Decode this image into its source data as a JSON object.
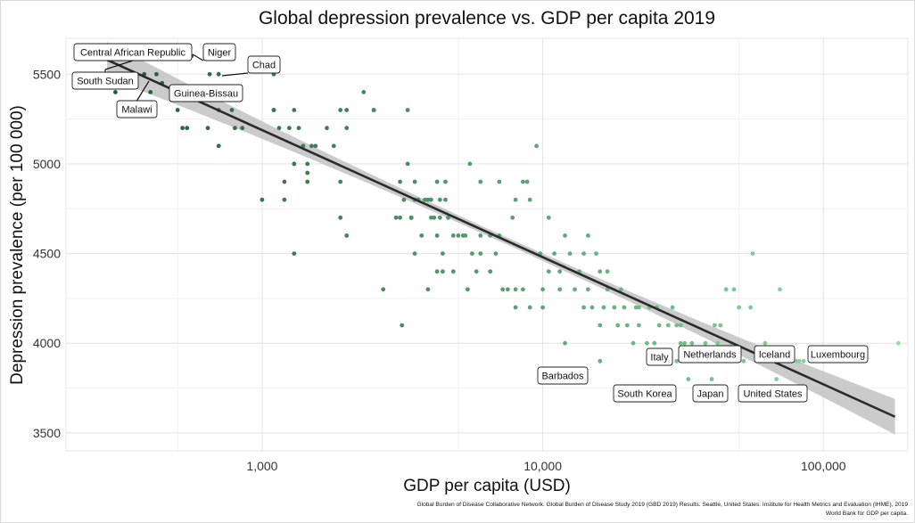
{
  "chart_data": {
    "type": "scatter",
    "title": "Global depression prevalence vs. GDP per capita 2019",
    "xlabel": "GDP per capita (USD)",
    "ylabel": "Depression prevalence (per 100 000)",
    "x_scale": "log10",
    "xlim": [
      200,
      200000
    ],
    "ylim": [
      3400,
      5700
    ],
    "x_ticks": [
      {
        "value": 1000,
        "label": "1,000"
      },
      {
        "value": 10000,
        "label": "10,000"
      },
      {
        "value": 100000,
        "label": "100,000"
      }
    ],
    "y_ticks": [
      {
        "value": 3500,
        "label": "3500"
      },
      {
        "value": 4000,
        "label": "4000"
      },
      {
        "value": 4500,
        "label": "4500"
      },
      {
        "value": 5000,
        "label": "5000"
      },
      {
        "value": 5500,
        "label": "5500"
      }
    ],
    "grid": true,
    "color_scale": {
      "low": "#1f5c3a",
      "high": "#8fe0a4",
      "by": "x"
    },
    "trend": {
      "type": "linear-log",
      "x_start": 280,
      "y_start": 5580,
      "x_end": 180000,
      "y_end": 3590,
      "ribbon_color": "#c2c2c2",
      "line_color": "#2b2b2b"
    },
    "points": [
      [
        300,
        5400
      ],
      [
        380,
        5500
      ],
      [
        480,
        5600
      ],
      [
        560,
        5600
      ],
      [
        700,
        5600
      ],
      [
        1100,
        5500
      ],
      [
        530,
        5600
      ],
      [
        440,
        5450
      ],
      [
        400,
        5400
      ],
      [
        420,
        5500
      ],
      [
        500,
        5300
      ],
      [
        520,
        5200
      ],
      [
        540,
        5200
      ],
      [
        640,
        5200
      ],
      [
        650,
        5500
      ],
      [
        700,
        5500
      ],
      [
        700,
        5300
      ],
      [
        700,
        5100
      ],
      [
        780,
        5300
      ],
      [
        800,
        5200
      ],
      [
        850,
        5200
      ],
      [
        1000,
        4800
      ],
      [
        1100,
        5300
      ],
      [
        1100,
        5300
      ],
      [
        1150,
        5200
      ],
      [
        1200,
        4900
      ],
      [
        1200,
        4800
      ],
      [
        1250,
        5200
      ],
      [
        1300,
        5300
      ],
      [
        1300,
        5000
      ],
      [
        1300,
        5000
      ],
      [
        1300,
        4500
      ],
      [
        1350,
        5200
      ],
      [
        1400,
        5100
      ],
      [
        1450,
        4900
      ],
      [
        1450,
        4950
      ],
      [
        1450,
        5000
      ],
      [
        1500,
        5100
      ],
      [
        1550,
        5100
      ],
      [
        1700,
        5200
      ],
      [
        1800,
        5100
      ],
      [
        1900,
        4700
      ],
      [
        1900,
        5300
      ],
      [
        1900,
        4900
      ],
      [
        2000,
        5300
      ],
      [
        2000,
        5200
      ],
      [
        2000,
        4600
      ],
      [
        2300,
        5400
      ],
      [
        2500,
        5300
      ],
      [
        2500,
        5300
      ],
      [
        2700,
        4300
      ],
      [
        3000,
        4700
      ],
      [
        3100,
        4900
      ],
      [
        3100,
        4700
      ],
      [
        3150,
        4100
      ],
      [
        3200,
        4800
      ],
      [
        3300,
        5300
      ],
      [
        3300,
        5000
      ],
      [
        3400,
        4700
      ],
      [
        3400,
        4700
      ],
      [
        3400,
        4700
      ],
      [
        3400,
        4700
      ],
      [
        3500,
        4500
      ],
      [
        3500,
        4800
      ],
      [
        3500,
        4900
      ],
      [
        3600,
        4800
      ],
      [
        3700,
        4600
      ],
      [
        3800,
        4800
      ],
      [
        3900,
        4300
      ],
      [
        3900,
        4800
      ],
      [
        4000,
        4800
      ],
      [
        4000,
        4700
      ],
      [
        4100,
        4700
      ],
      [
        4200,
        4900
      ],
      [
        4200,
        4400
      ],
      [
        4200,
        4600
      ],
      [
        4300,
        4800
      ],
      [
        4300,
        4700
      ],
      [
        4400,
        4500
      ],
      [
        4400,
        4400
      ],
      [
        4500,
        4800
      ],
      [
        4500,
        4900
      ],
      [
        4600,
        4700
      ],
      [
        4800,
        4600
      ],
      [
        4800,
        4400
      ],
      [
        5000,
        4600
      ],
      [
        5200,
        4600
      ],
      [
        5300,
        4600
      ],
      [
        5400,
        4300
      ],
      [
        5500,
        5000
      ],
      [
        5600,
        4500
      ],
      [
        5800,
        4400
      ],
      [
        6000,
        4600
      ],
      [
        6000,
        4900
      ],
      [
        6000,
        4500
      ],
      [
        6500,
        4600
      ],
      [
        6500,
        4400
      ],
      [
        6500,
        4400
      ],
      [
        6800,
        4500
      ],
      [
        7000,
        4900
      ],
      [
        7000,
        4600
      ],
      [
        7200,
        4300
      ],
      [
        7500,
        4300
      ],
      [
        7800,
        4700
      ],
      [
        8000,
        4200
      ],
      [
        8000,
        4800
      ],
      [
        8000,
        4300
      ],
      [
        8500,
        4300
      ],
      [
        8500,
        4900
      ],
      [
        8800,
        4900
      ],
      [
        9000,
        4200
      ],
      [
        9000,
        4800
      ],
      [
        9500,
        5100
      ],
      [
        9800,
        4500
      ],
      [
        10000,
        4200
      ],
      [
        10000,
        4300
      ],
      [
        10500,
        4700
      ],
      [
        10500,
        4400
      ],
      [
        11000,
        4500
      ],
      [
        11500,
        4400
      ],
      [
        11500,
        4300
      ],
      [
        12000,
        4600
      ],
      [
        12000,
        4000
      ],
      [
        12500,
        4500
      ],
      [
        13000,
        4300
      ],
      [
        13500,
        4400
      ],
      [
        14000,
        4500
      ],
      [
        14000,
        4200
      ],
      [
        14500,
        4600
      ],
      [
        14500,
        4300
      ],
      [
        15000,
        4200
      ],
      [
        15500,
        4500
      ],
      [
        16000,
        3900
      ],
      [
        16000,
        4400
      ],
      [
        16000,
        4100
      ],
      [
        16500,
        4200
      ],
      [
        17000,
        4400
      ],
      [
        17000,
        4300
      ],
      [
        18000,
        4200
      ],
      [
        18500,
        4100
      ],
      [
        19000,
        4300
      ],
      [
        19500,
        4200
      ],
      [
        20000,
        4100
      ],
      [
        21000,
        4000
      ],
      [
        21500,
        4200
      ],
      [
        22000,
        4200
      ],
      [
        22000,
        4100
      ],
      [
        23500,
        4000
      ],
      [
        24000,
        4200
      ],
      [
        25000,
        4000
      ],
      [
        25500,
        4200
      ],
      [
        26000,
        4100
      ],
      [
        28000,
        4100
      ],
      [
        29000,
        4200
      ],
      [
        30000,
        4100
      ],
      [
        30000,
        3900
      ],
      [
        31000,
        4000
      ],
      [
        31000,
        4100
      ],
      [
        32000,
        4000
      ],
      [
        33000,
        3800
      ],
      [
        34000,
        4000
      ],
      [
        35000,
        3950
      ],
      [
        38000,
        3900
      ],
      [
        38000,
        4000
      ],
      [
        40000,
        3800
      ],
      [
        41000,
        4100
      ],
      [
        42000,
        4000
      ],
      [
        43000,
        4100
      ],
      [
        45000,
        3900
      ],
      [
        45000,
        4300
      ],
      [
        47000,
        4000
      ],
      [
        48000,
        4300
      ],
      [
        50000,
        4200
      ],
      [
        52000,
        3900
      ],
      [
        55000,
        4200
      ],
      [
        56000,
        4500
      ],
      [
        58000,
        3900
      ],
      [
        62000,
        4000
      ],
      [
        64000,
        3900
      ],
      [
        68000,
        3800
      ],
      [
        70000,
        4300
      ],
      [
        75000,
        3900
      ],
      [
        80000,
        3900
      ],
      [
        82000,
        3900
      ],
      [
        85000,
        3900
      ],
      [
        115000,
        3900
      ],
      [
        185000,
        4000
      ]
    ],
    "annotations": [
      {
        "label": "Central African Republic",
        "x": 300,
        "y": 5550,
        "anchor": "left"
      },
      {
        "label": "Niger",
        "x": 560,
        "y": 5600,
        "anchor": "left"
      },
      {
        "label": "Chad",
        "x": 700,
        "y": 5500,
        "anchor": "left"
      },
      {
        "label": "South Sudan",
        "x": 300,
        "y": 5550,
        "anchor": "left"
      },
      {
        "label": "Guinea-Bissau",
        "x": 650,
        "y": 5500,
        "anchor": "left"
      },
      {
        "label": "Malawi",
        "x": 380,
        "y": 5500,
        "anchor": "left"
      },
      {
        "label": "Barbados",
        "x": 16000,
        "y": 3900,
        "anchor": "left"
      },
      {
        "label": "Italy",
        "x": 31000,
        "y": 3970,
        "anchor": "left"
      },
      {
        "label": "Netherlands",
        "x": 52000,
        "y": 3950,
        "anchor": "left"
      },
      {
        "label": "Iceland",
        "x": 70000,
        "y": 3950,
        "anchor": "left"
      },
      {
        "label": "Luxembourg",
        "x": 115000,
        "y": 3950,
        "anchor": "left"
      },
      {
        "label": "South Korea",
        "x": 31000,
        "y": 3800,
        "anchor": "left"
      },
      {
        "label": "Japan",
        "x": 42000,
        "y": 3800,
        "anchor": "left"
      },
      {
        "label": "United States",
        "x": 65000,
        "y": 3800,
        "anchor": "left"
      }
    ],
    "caption": [
      "Global Burden of Disease Collaborative Network. Global Burden of Disease Study 2019 (GBD 2019) Results. Seattle, United States: Institute for Health Metrics and Evaluation (IHME), 2019",
      "World Bank for GDP per capita."
    ]
  }
}
